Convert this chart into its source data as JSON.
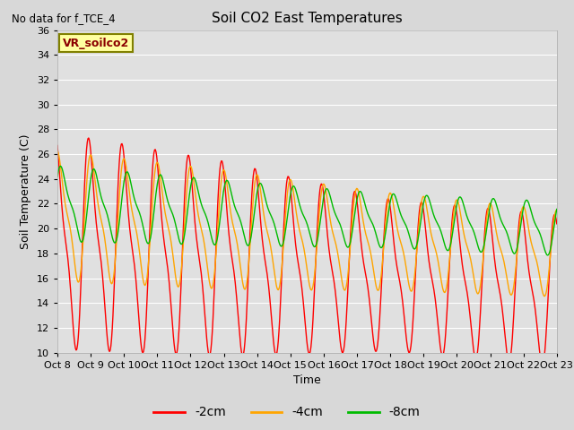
{
  "title": "Soil CO2 East Temperatures",
  "no_data_text": "No data for f_TCE_4",
  "xlabel": "Time",
  "ylabel": "Soil Temperature (C)",
  "ylim": [
    10,
    36
  ],
  "yticks": [
    10,
    12,
    14,
    16,
    18,
    20,
    22,
    24,
    26,
    28,
    30,
    32,
    34,
    36
  ],
  "x_labels": [
    "Oct 8",
    "Oct 9",
    "Oct 10",
    "Oct 11",
    "Oct 12",
    "Oct 13",
    "Oct 14",
    "Oct 15",
    "Oct 16",
    "Oct 17",
    "Oct 18",
    "Oct 19",
    "Oct 20",
    "Oct 21",
    "Oct 22",
    "Oct 23"
  ],
  "legend_label": "VR_soilco2",
  "line_colors": {
    "2cm": "#ff0000",
    "4cm": "#ffa500",
    "8cm": "#00bb00"
  },
  "legend_labels": [
    "-2cm",
    "-4cm",
    "-8cm"
  ],
  "fig_facecolor": "#d8d8d8",
  "plot_bg_color": "#e0e0e0"
}
